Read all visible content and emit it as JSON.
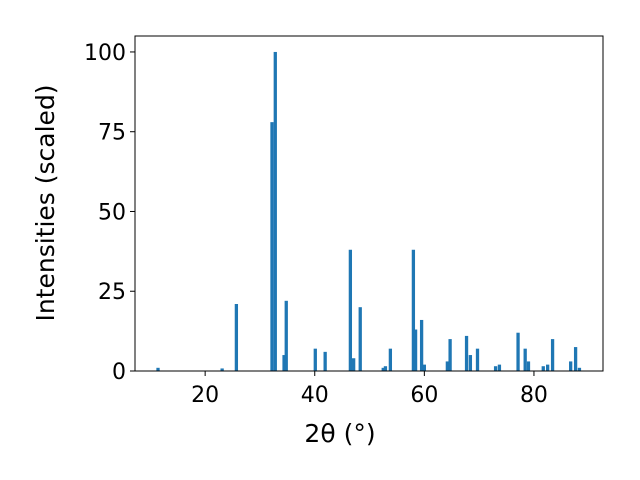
{
  "chart_data": {
    "type": "bar",
    "xlabel": "2θ (°)",
    "ylabel": "Intensities (scaled)",
    "x": [
      11.4,
      23.1,
      25.7,
      32.2,
      32.8,
      34.4,
      34.8,
      40.1,
      41.9,
      46.5,
      47.1,
      48.3,
      52.5,
      52.9,
      53.8,
      58.0,
      58.4,
      59.5,
      60.0,
      64.2,
      64.7,
      67.7,
      68.4,
      69.7,
      73.0,
      73.7,
      77.1,
      78.4,
      79.0,
      81.7,
      82.5,
      83.4,
      86.7,
      87.6,
      88.3
    ],
    "values": [
      1,
      0.8,
      21,
      78,
      100,
      5,
      22,
      7,
      6,
      38,
      4,
      20,
      1,
      1.5,
      7,
      38,
      13,
      16,
      2,
      3,
      10,
      11,
      5,
      7,
      1.5,
      2,
      12,
      7,
      3,
      1.5,
      2,
      10,
      3,
      7.5,
      1
    ],
    "color": "#1f77b4",
    "xlim": [
      7.2,
      92.6
    ],
    "xticks": [
      20,
      40,
      60,
      80
    ],
    "ylim": [
      0,
      105
    ],
    "yticks": [
      0,
      25,
      50,
      75,
      100
    ]
  }
}
